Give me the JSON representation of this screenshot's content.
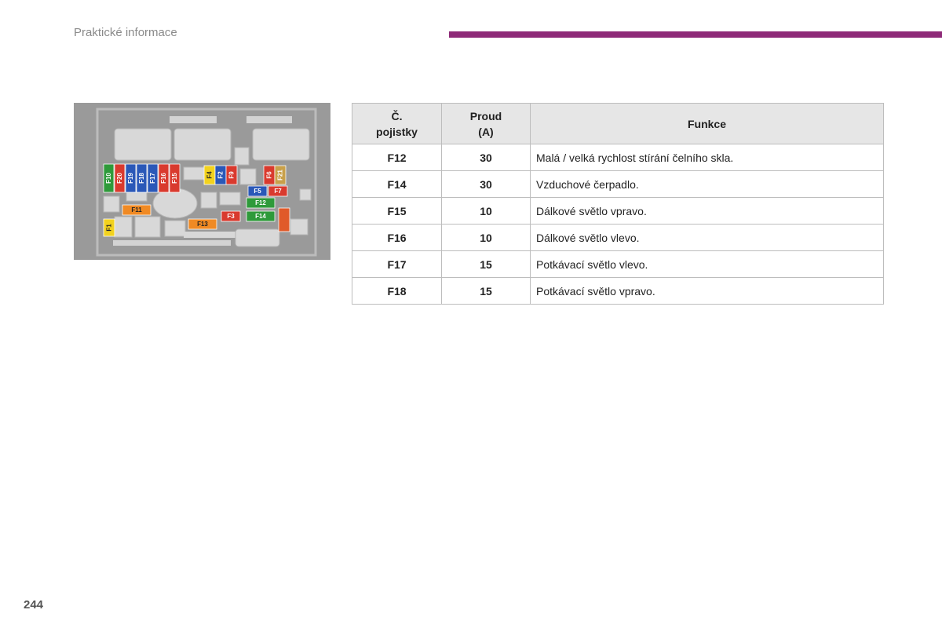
{
  "header": {
    "title": "Praktické informace",
    "accent_color": "#8e2a78"
  },
  "page_number": "244",
  "diagram": {
    "fuses": [
      {
        "label": "F10",
        "color": "#2e9a3a"
      },
      {
        "label": "F20",
        "color": "#d93a2e"
      },
      {
        "label": "F19",
        "color": "#2a58b8"
      },
      {
        "label": "F18",
        "color": "#2a58b8"
      },
      {
        "label": "F17",
        "color": "#2a58b8"
      },
      {
        "label": "F16",
        "color": "#d93a2e"
      },
      {
        "label": "F15",
        "color": "#d93a2e"
      },
      {
        "label": "F4",
        "color": "#f2d21e"
      },
      {
        "label": "F2",
        "color": "#2a58b8"
      },
      {
        "label": "F9",
        "color": "#d93a2e"
      },
      {
        "label": "F6",
        "color": "#d93a2e"
      },
      {
        "label": "F21",
        "color": "#c9a04a"
      },
      {
        "label": "F5",
        "color": "#2a58b8"
      },
      {
        "label": "F7",
        "color": "#d93a2e"
      },
      {
        "label": "F11",
        "color": "#f08a24"
      },
      {
        "label": "F12",
        "color": "#2e9a3a"
      },
      {
        "label": "F3",
        "color": "#d93a2e"
      },
      {
        "label": "F14",
        "color": "#2e9a3a"
      },
      {
        "label": "F1",
        "color": "#f2d21e"
      },
      {
        "label": "F13",
        "color": "#f08a24"
      },
      {
        "label": "",
        "color": "#e05a2a"
      }
    ]
  },
  "table": {
    "headers": {
      "number": [
        "Č.",
        "pojistky"
      ],
      "current": [
        "Proud",
        "(A)"
      ],
      "function": "Funkce"
    },
    "rows": [
      {
        "fuse": "F12",
        "amps": "30",
        "function": "Malá / velká rychlost stírání čelního skla."
      },
      {
        "fuse": "F14",
        "amps": "30",
        "function": "Vzduchové čerpadlo."
      },
      {
        "fuse": "F15",
        "amps": "10",
        "function": "Dálkové světlo vpravo."
      },
      {
        "fuse": "F16",
        "amps": "10",
        "function": "Dálkové světlo vlevo."
      },
      {
        "fuse": "F17",
        "amps": "15",
        "function": "Potkávací světlo vlevo."
      },
      {
        "fuse": "F18",
        "amps": "15",
        "function": "Potkávací světlo vpravo."
      }
    ]
  }
}
